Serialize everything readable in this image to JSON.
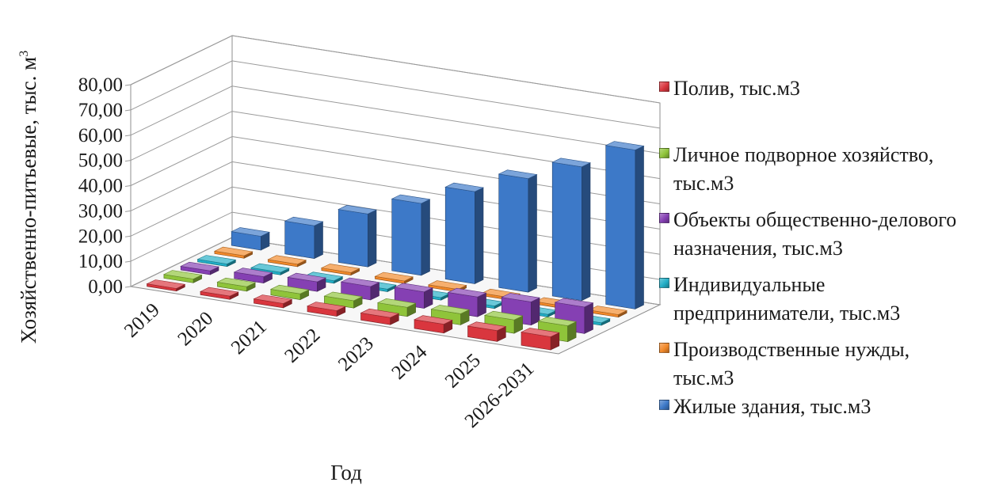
{
  "chart_data": {
    "type": "bar",
    "subtype": "3d-column",
    "categories": [
      "2019",
      "2020",
      "2021",
      "2022",
      "2023",
      "2024",
      "2025",
      "2026-2031"
    ],
    "series": [
      {
        "name": "Полив, тыс.м3",
        "color": "#d9363e",
        "values": [
          1.0,
          1.3,
          1.7,
          2.2,
          2.8,
          3.5,
          4.3,
          5.2
        ]
      },
      {
        "name": "Личное подворное хозяйство,\nтыс.м3",
        "color": "#8fc43a",
        "values": [
          1.5,
          1.8,
          2.3,
          2.9,
          3.6,
          4.4,
          5.3,
          6.3
        ]
      },
      {
        "name": "Объекты общественно-делового\nназначения, тыс.м3",
        "color": "#8540b3",
        "values": [
          1.5,
          2.5,
          3.8,
          5.3,
          6.5,
          7.8,
          9.2,
          10.5
        ]
      },
      {
        "name": "Индивидуальные\nпредприниматели, тыс.м3",
        "color": "#22aec6",
        "values": [
          1.0,
          1.0,
          1.0,
          1.0,
          1.0,
          1.0,
          1.0,
          1.0
        ]
      },
      {
        "name": "Производственные нужды,\nтыс.м3",
        "color": "#f2892a",
        "values": [
          1.0,
          1.0,
          1.0,
          1.0,
          1.0,
          1.0,
          1.0,
          1.0
        ]
      },
      {
        "name": "Жилые здания, тыс.м3",
        "color": "#3d79c8",
        "values": [
          5.5,
          13.0,
          21.0,
          28.5,
          36.5,
          45.0,
          53.0,
          63.0
        ]
      }
    ],
    "yticks": [
      "0,00",
      "10,00",
      "20,00",
      "30,00",
      "40,00",
      "50,00",
      "60,00",
      "70,00",
      "80,00"
    ],
    "ylim": [
      0,
      80
    ],
    "xlabel": "Год",
    "ylabel": "Хозяйственно-питьевые, тыс. м",
    "ylabel_sup": "3",
    "legend_position": "right",
    "grid": true
  }
}
